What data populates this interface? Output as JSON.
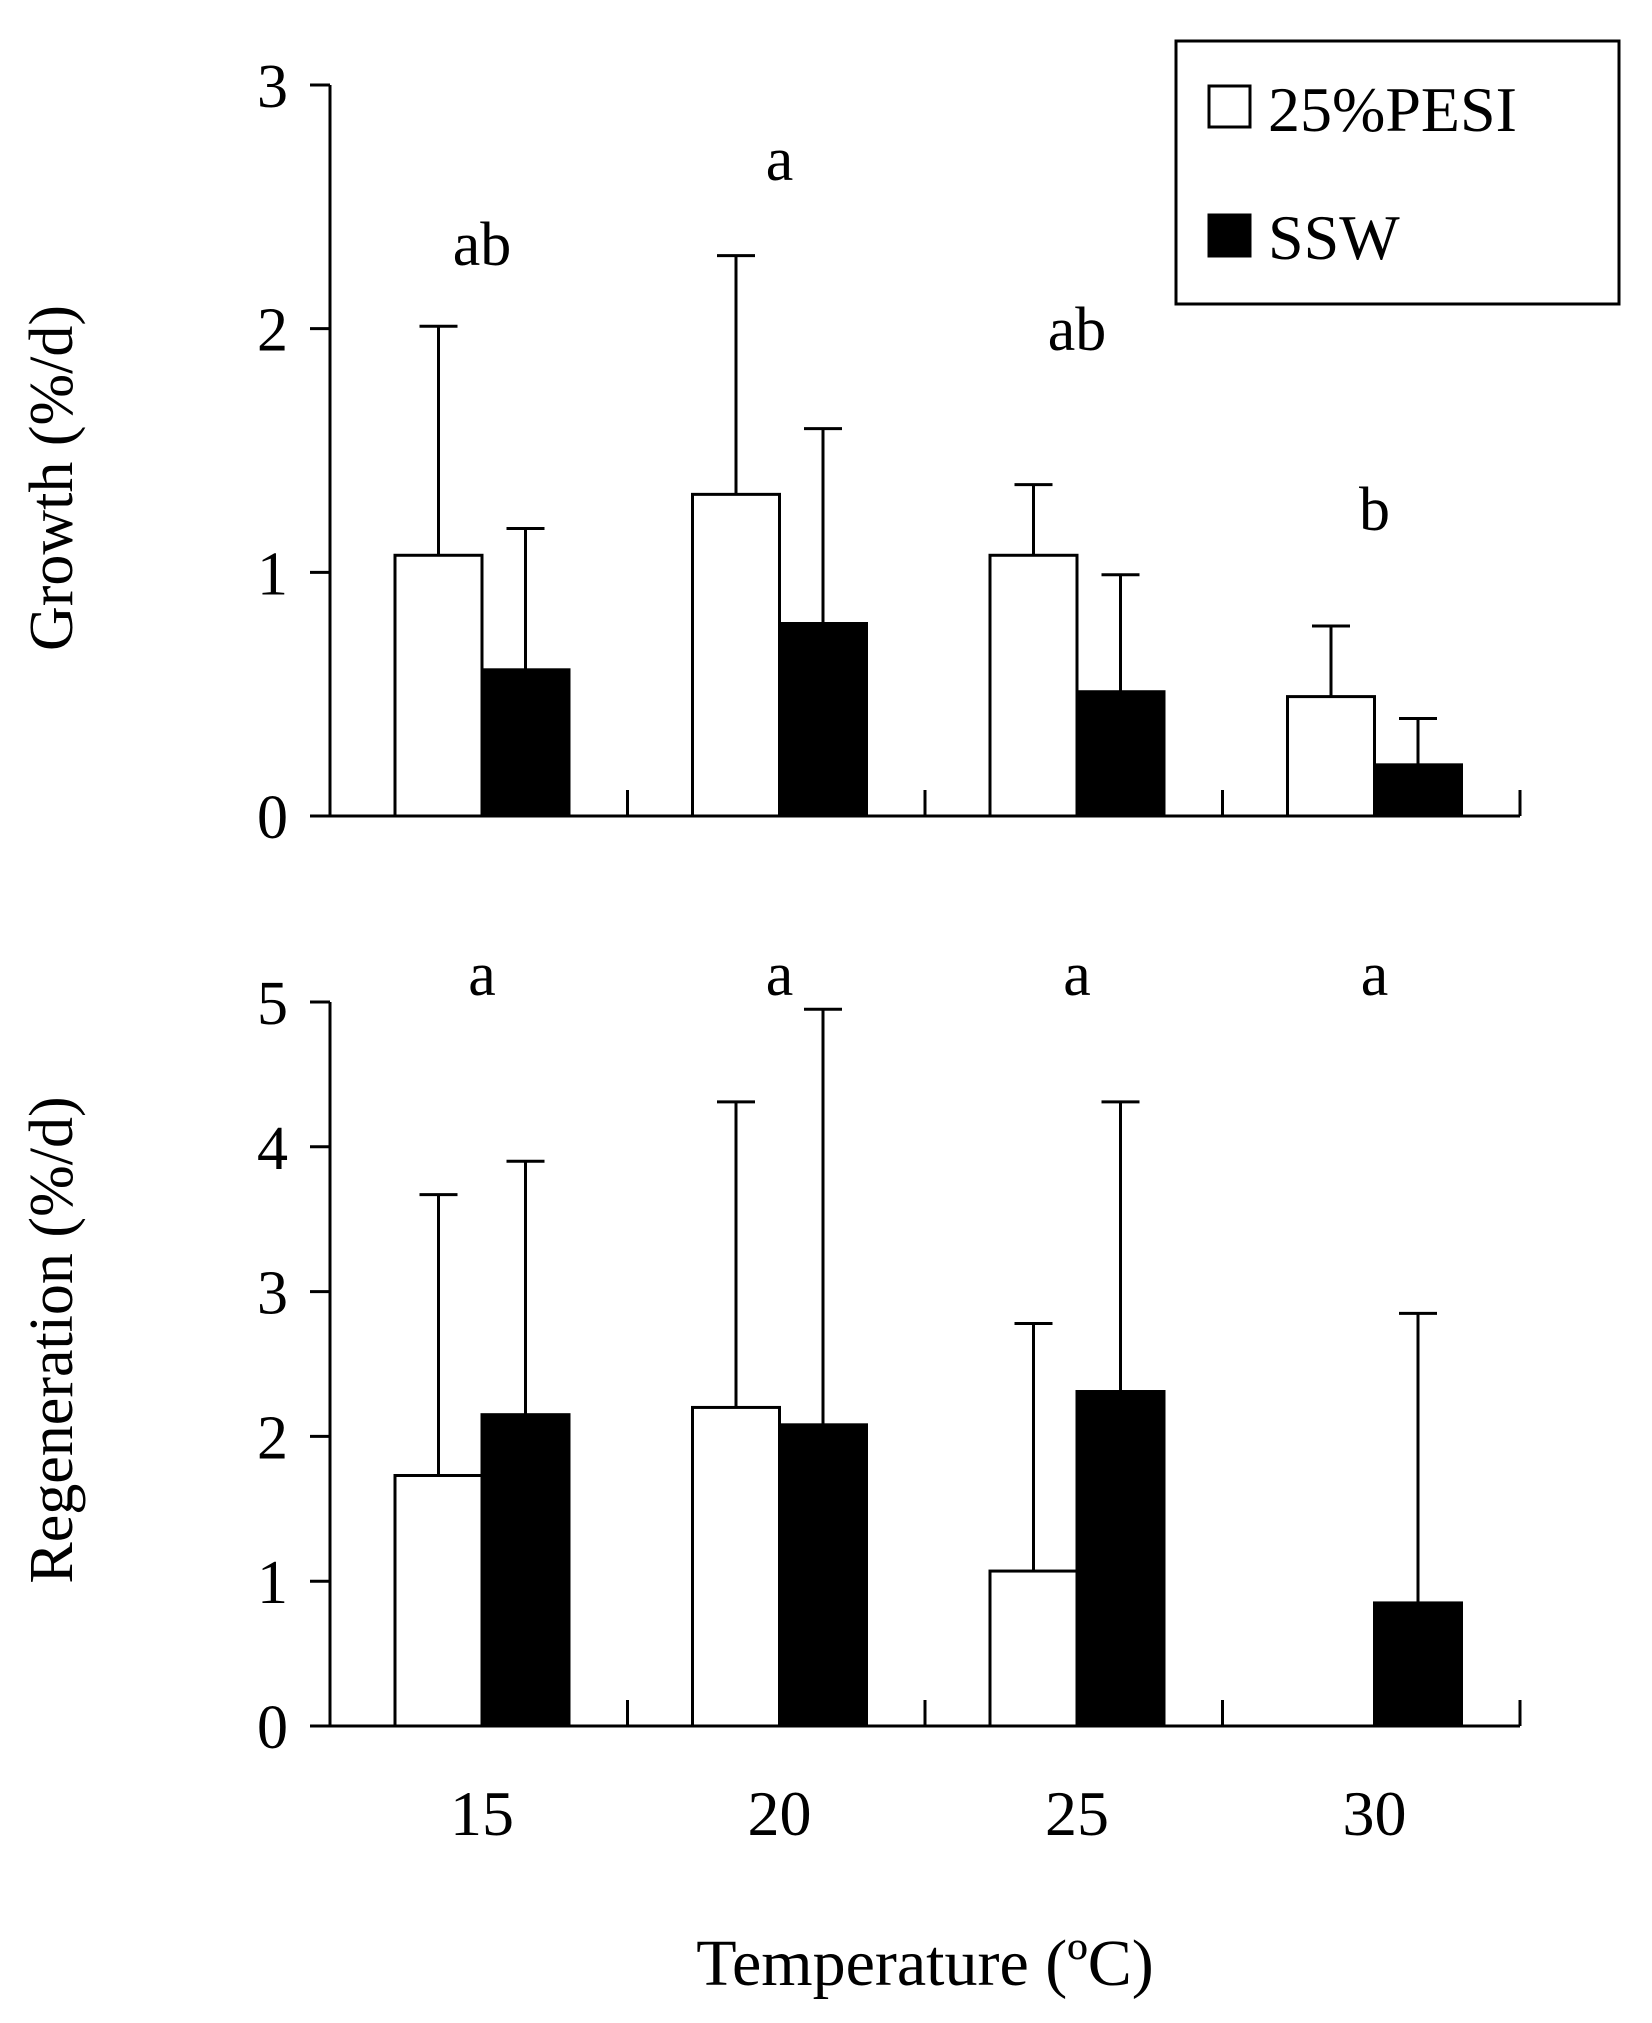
{
  "chart_data": [
    {
      "type": "bar",
      "title": "",
      "xlabel": "",
      "ylabel": "Growth (%/d)",
      "categories": [
        "15",
        "20",
        "25",
        "30"
      ],
      "yticks": [
        "0",
        "1",
        "2",
        "3"
      ],
      "ylim": [
        0,
        3
      ],
      "grid": false,
      "legend": {
        "position": "top-right",
        "entries": [
          {
            "name": "25%PESI",
            "fill": "#ffffff"
          },
          {
            "name": "SSW",
            "fill": "#000000"
          }
        ]
      },
      "series": [
        {
          "name": "25%PESI",
          "fill": "#ffffff",
          "values": [
            1.07,
            1.32,
            1.07,
            0.49
          ],
          "errors": [
            0.94,
            0.98,
            0.29,
            0.29
          ]
        },
        {
          "name": "SSW",
          "fill": "#000000",
          "values": [
            0.6,
            0.79,
            0.51,
            0.21
          ],
          "errors": [
            0.58,
            0.8,
            0.48,
            0.19
          ]
        }
      ],
      "annotations": [
        "ab",
        "a",
        "ab",
        "b"
      ]
    },
    {
      "type": "bar",
      "title": "",
      "xlabel": "Temperature (ºC)",
      "ylabel": "Regeneration (%/d)",
      "categories": [
        "15",
        "20",
        "25",
        "30"
      ],
      "yticks": [
        "0",
        "1",
        "2",
        "3",
        "4",
        "5"
      ],
      "ylim": [
        0,
        5
      ],
      "grid": false,
      "series": [
        {
          "name": "25%PESI",
          "fill": "#ffffff",
          "values": [
            1.73,
            2.2,
            1.07,
            0
          ],
          "errors": [
            1.94,
            2.11,
            1.71,
            0
          ]
        },
        {
          "name": "SSW",
          "fill": "#000000",
          "values": [
            2.15,
            2.08,
            2.31,
            0.85
          ],
          "errors": [
            1.75,
            2.87,
            2.0,
            2.0
          ]
        }
      ],
      "annotations": [
        "a",
        "a",
        "a",
        "a"
      ]
    }
  ]
}
